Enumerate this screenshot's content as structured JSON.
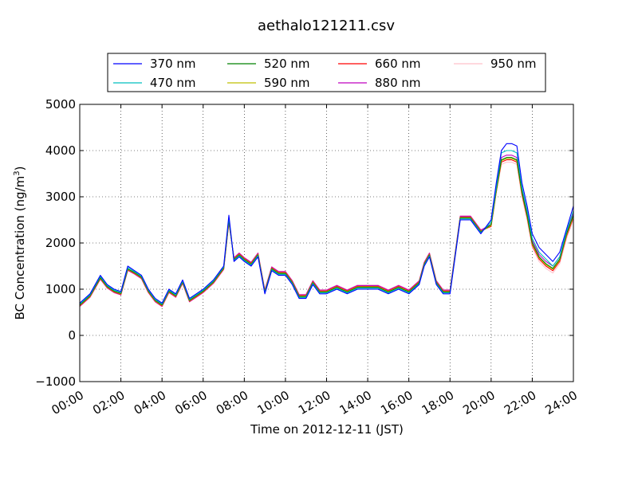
{
  "chart_data": {
    "type": "line",
    "title": "aethalo121211.csv",
    "xlabel": "Time on 2012-12-11 (JST)",
    "ylabel": "BC Concentration (ng/m",
    "ylabel_sup": "3",
    "ylabel_end": ")",
    "xlim": [
      "00:00",
      "24:00"
    ],
    "ylim": [
      -1000,
      5000
    ],
    "yticks": [
      -1000,
      0,
      1000,
      2000,
      3000,
      4000,
      5000
    ],
    "ytick_labels": [
      "−1000",
      "0",
      "1000",
      "2000",
      "3000",
      "4000",
      "5000"
    ],
    "xticks": [
      "00:00",
      "02:00",
      "04:00",
      "06:00",
      "08:00",
      "10:00",
      "12:00",
      "14:00",
      "16:00",
      "18:00",
      "20:00",
      "22:00",
      "24:00"
    ],
    "grid": true,
    "legend_position": "top",
    "x": [
      "00:00",
      "00:30",
      "01:00",
      "01:20",
      "01:40",
      "02:00",
      "02:20",
      "02:40",
      "03:00",
      "03:20",
      "03:40",
      "04:00",
      "04:20",
      "04:40",
      "05:00",
      "05:20",
      "05:40",
      "06:00",
      "06:30",
      "07:00",
      "07:15",
      "07:30",
      "07:45",
      "08:00",
      "08:20",
      "08:40",
      "09:00",
      "09:20",
      "09:40",
      "10:00",
      "10:20",
      "10:40",
      "11:00",
      "11:20",
      "11:40",
      "12:00",
      "12:30",
      "13:00",
      "13:30",
      "14:00",
      "14:30",
      "15:00",
      "15:30",
      "16:00",
      "16:30",
      "16:45",
      "17:00",
      "17:20",
      "17:40",
      "18:00",
      "18:30",
      "19:00",
      "19:30",
      "20:00",
      "20:15",
      "20:30",
      "20:45",
      "21:00",
      "21:15",
      "21:30",
      "21:45",
      "22:00",
      "22:20",
      "22:40",
      "23:00",
      "23:20",
      "23:40",
      "24:00"
    ],
    "series": [
      {
        "name": "370 nm",
        "color": "#0000ff",
        "values": [
          700,
          900,
          1300,
          1100,
          1000,
          950,
          1500,
          1400,
          1300,
          1000,
          800,
          700,
          1000,
          900,
          1200,
          800,
          900,
          1000,
          1200,
          1500,
          2600,
          1600,
          1700,
          1600,
          1500,
          1700,
          900,
          1400,
          1300,
          1300,
          1100,
          800,
          800,
          1100,
          900,
          900,
          1000,
          900,
          1000,
          1000,
          1000,
          900,
          1000,
          900,
          1100,
          1500,
          1700,
          1100,
          900,
          900,
          2500,
          2500,
          2200,
          2500,
          3300,
          4000,
          4150,
          4150,
          4100,
          3300,
          2800,
          2200,
          1900,
          1750,
          1600,
          1800,
          2300,
          2800
        ]
      },
      {
        "name": "470 nm",
        "color": "#00bfbf",
        "values": [
          680,
          880,
          1280,
          1080,
          980,
          930,
          1470,
          1380,
          1280,
          980,
          780,
          680,
          980,
          880,
          1180,
          780,
          880,
          980,
          1180,
          1480,
          2550,
          1620,
          1720,
          1620,
          1520,
          1720,
          920,
          1420,
          1320,
          1320,
          1120,
          820,
          820,
          1120,
          920,
          920,
          1020,
          920,
          1020,
          1020,
          1020,
          920,
          1020,
          920,
          1120,
          1520,
          1720,
          1120,
          920,
          920,
          2520,
          2520,
          2220,
          2450,
          3200,
          3950,
          4000,
          4000,
          3950,
          3200,
          2700,
          2100,
          1800,
          1650,
          1500,
          1700,
          2250,
          2700
        ]
      },
      {
        "name": "520 nm",
        "color": "#008000",
        "values": [
          660,
          860,
          1250,
          1060,
          960,
          910,
          1440,
          1360,
          1260,
          960,
          760,
          660,
          960,
          860,
          1160,
          760,
          860,
          960,
          1160,
          1460,
          2500,
          1640,
          1740,
          1640,
          1540,
          1740,
          940,
          1440,
          1340,
          1340,
          1140,
          840,
          840,
          1140,
          940,
          940,
          1040,
          940,
          1040,
          1040,
          1040,
          940,
          1040,
          940,
          1140,
          1540,
          1740,
          1140,
          940,
          940,
          2540,
          2540,
          2240,
          2400,
          3150,
          3800,
          3850,
          3850,
          3800,
          3100,
          2600,
          2000,
          1700,
          1550,
          1450,
          1650,
          2200,
          2600
        ]
      },
      {
        "name": "590 nm",
        "color": "#bfbf00",
        "values": [
          650,
          850,
          1240,
          1050,
          950,
          900,
          1430,
          1350,
          1250,
          950,
          750,
          650,
          950,
          850,
          1150,
          750,
          850,
          950,
          1150,
          1450,
          2480,
          1650,
          1750,
          1650,
          1550,
          1750,
          950,
          1450,
          1350,
          1350,
          1150,
          850,
          850,
          1150,
          950,
          950,
          1050,
          950,
          1050,
          1050,
          1050,
          950,
          1050,
          950,
          1150,
          1550,
          1750,
          1150,
          950,
          950,
          2550,
          2550,
          2250,
          2380,
          3120,
          3780,
          3830,
          3830,
          3780,
          3080,
          2580,
          1980,
          1680,
          1530,
          1430,
          1630,
          2180,
          2580
        ]
      },
      {
        "name": "660 nm",
        "color": "#ff0000",
        "values": [
          640,
          840,
          1230,
          1040,
          940,
          890,
          1420,
          1340,
          1240,
          940,
          740,
          640,
          940,
          840,
          1140,
          740,
          840,
          940,
          1140,
          1440,
          2460,
          1660,
          1760,
          1660,
          1560,
          1760,
          960,
          1460,
          1360,
          1360,
          1160,
          860,
          860,
          1160,
          960,
          960,
          1060,
          960,
          1060,
          1060,
          1060,
          960,
          1060,
          960,
          1160,
          1560,
          1760,
          1160,
          960,
          960,
          2560,
          2560,
          2260,
          2360,
          3100,
          3750,
          3800,
          3800,
          3750,
          3050,
          2550,
          1950,
          1650,
          1500,
          1400,
          1600,
          2150,
          2550
        ]
      },
      {
        "name": "880 nm",
        "color": "#bf00bf",
        "values": [
          630,
          830,
          1220,
          1030,
          930,
          880,
          1410,
          1330,
          1230,
          930,
          730,
          630,
          930,
          830,
          1130,
          730,
          830,
          930,
          1130,
          1430,
          2450,
          1680,
          1780,
          1680,
          1580,
          1780,
          980,
          1480,
          1380,
          1380,
          1180,
          880,
          880,
          1180,
          980,
          980,
          1080,
          980,
          1080,
          1080,
          1080,
          980,
          1080,
          980,
          1180,
          1580,
          1780,
          1180,
          980,
          980,
          2580,
          2580,
          2280,
          2400,
          3150,
          3850,
          3900,
          3900,
          3850,
          3150,
          2650,
          2050,
          1750,
          1600,
          1500,
          1700,
          2250,
          2650
        ]
      },
      {
        "name": "950 nm",
        "color": "#ffc0cb",
        "values": [
          620,
          820,
          1210,
          1020,
          920,
          870,
          1400,
          1320,
          1220,
          920,
          720,
          620,
          920,
          820,
          1120,
          720,
          820,
          920,
          1120,
          1420,
          2440,
          1690,
          1790,
          1690,
          1590,
          1790,
          990,
          1490,
          1390,
          1390,
          1190,
          890,
          890,
          1190,
          990,
          990,
          1090,
          990,
          1090,
          1090,
          1090,
          990,
          1090,
          990,
          1190,
          1590,
          1790,
          1190,
          990,
          990,
          2590,
          2590,
          2290,
          2350,
          3100,
          3700,
          3750,
          3750,
          3700,
          3000,
          2500,
          1900,
          1600,
          1450,
          1350,
          1550,
          2100,
          2500
        ]
      }
    ]
  }
}
